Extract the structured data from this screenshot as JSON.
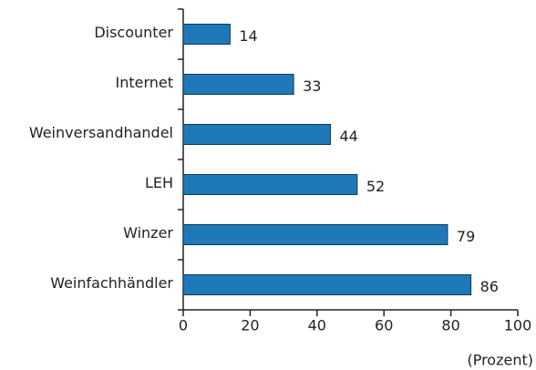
{
  "chart_data": {
    "type": "barh",
    "categories": [
      "Discounter",
      "Internet",
      "Weinversandhandel",
      "LEH",
      "Winzer",
      "Weinfachhändler"
    ],
    "values": [
      14,
      33,
      44,
      52,
      79,
      86
    ],
    "color": "#1f78b8",
    "xlabel": "(Prozent)",
    "xlim": [
      0,
      100
    ],
    "xticks": [
      0,
      20,
      40,
      60,
      80,
      100
    ]
  }
}
